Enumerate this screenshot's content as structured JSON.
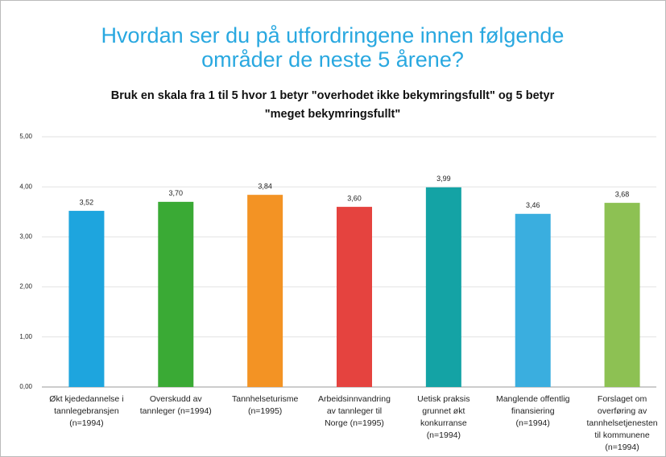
{
  "chart_data": {
    "type": "bar",
    "title": [
      "Hvordan ser du på utfordringene innen følgende",
      "områder de neste 5 årene?"
    ],
    "subtitle": [
      "Bruk en skala fra 1 til 5 hvor 1 betyr \"overhodet ikke bekymringsfullt\" og 5 betyr",
      "\"meget bekymringsfullt\""
    ],
    "categories": [
      [
        "Økt kjededannelse i",
        "tannlegebransjen",
        "(n=1994)"
      ],
      [
        "Overskudd av",
        "tannleger (n=1994)"
      ],
      [
        "Tannhelseturisme",
        "(n=1995)"
      ],
      [
        "Arbeidsinnvandring",
        "av tannleger til",
        "Norge (n=1995)"
      ],
      [
        "Uetisk praksis",
        "grunnet økt",
        "konkurranse",
        "(n=1994)"
      ],
      [
        "Manglende offentlig",
        "finansiering",
        "(n=1994)"
      ],
      [
        "Forslaget om",
        "overføring av",
        "tannhelsetjenesten",
        "til kommunene",
        "(n=1994)"
      ]
    ],
    "values": [
      3.52,
      3.7,
      3.84,
      3.6,
      3.99,
      3.46,
      3.68
    ],
    "value_labels": [
      "3,52",
      "3,70",
      "3,84",
      "3,60",
      "3,99",
      "3,46",
      "3,68"
    ],
    "colors": [
      "#1ea5de",
      "#3aaa35",
      "#f39324",
      "#e5433f",
      "#14a3a5",
      "#3aaedf",
      "#8dc153"
    ],
    "ylim": [
      0,
      5
    ],
    "yticks": [
      {
        "value": 0,
        "label": "0,00"
      },
      {
        "value": 1,
        "label": "1,00"
      },
      {
        "value": 2,
        "label": "2,00"
      },
      {
        "value": 3,
        "label": "3,00"
      },
      {
        "value": 4,
        "label": "4,00"
      },
      {
        "value": 5,
        "label": "5,00"
      }
    ],
    "grid": true
  }
}
